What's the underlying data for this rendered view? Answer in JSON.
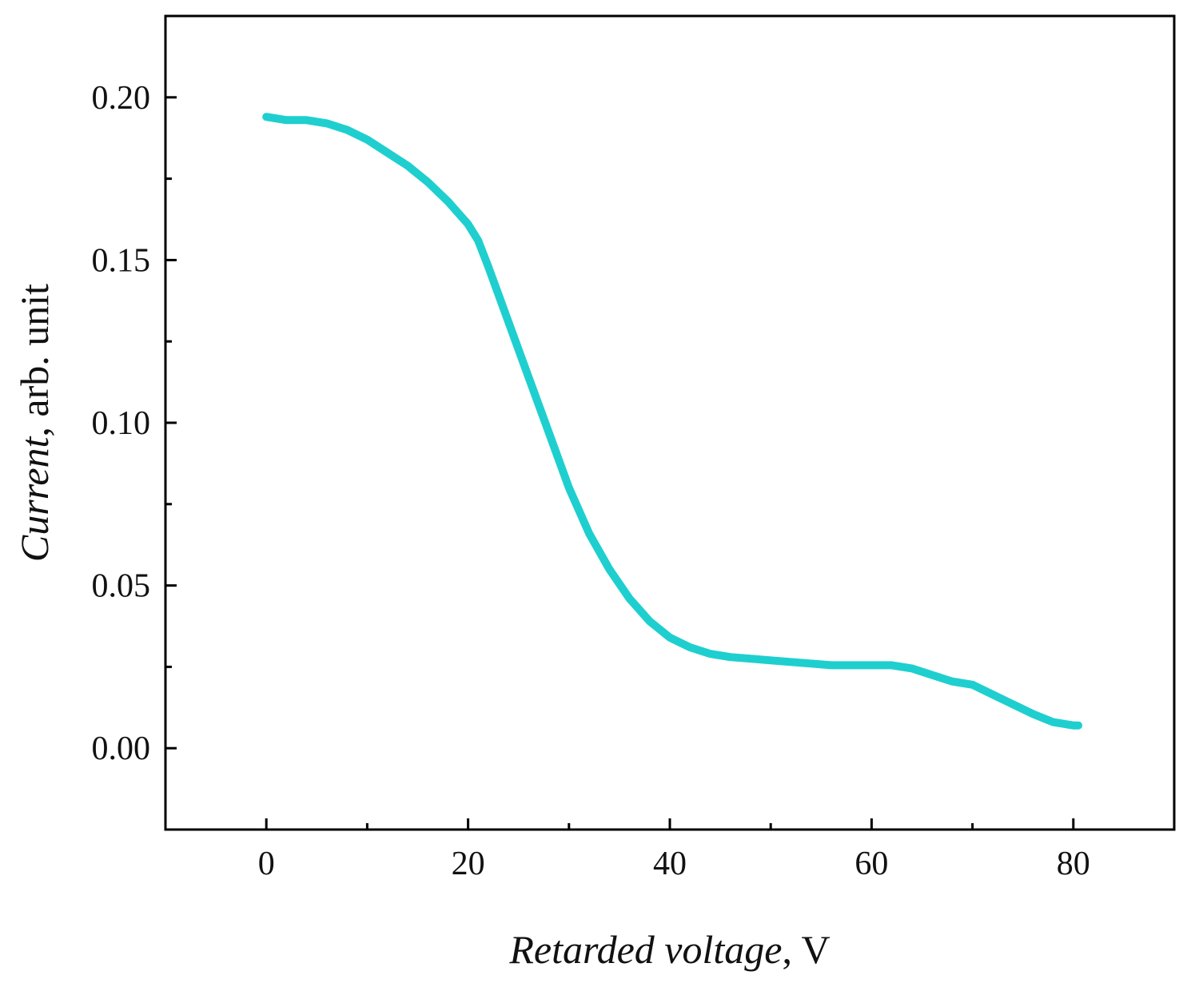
{
  "chart_data": {
    "type": "line",
    "title": "",
    "xlabel": {
      "italic": "Retarded voltage",
      "rest": ", V"
    },
    "ylabel": {
      "italic": "Current",
      "rest": ", arb. unit"
    },
    "xlim": [
      -10,
      90
    ],
    "ylim": [
      -0.025,
      0.225
    ],
    "x_ticks": [
      0,
      20,
      40,
      60,
      80
    ],
    "x_tick_labels": [
      "0",
      "20",
      "40",
      "60",
      "80"
    ],
    "y_ticks": [
      0.0,
      0.05,
      0.1,
      0.15,
      0.2
    ],
    "y_tick_labels": [
      "0.00",
      "0.05",
      "0.10",
      "0.15",
      "0.20"
    ],
    "grid": false,
    "series": [
      {
        "name": "Current",
        "color": "#1fcfcf",
        "x": [
          0,
          2,
          4,
          6,
          8,
          10,
          12,
          14,
          16,
          18,
          20,
          21,
          22,
          24,
          26,
          28,
          30,
          32,
          34,
          36,
          38,
          40,
          42,
          44,
          46,
          48,
          50,
          52,
          54,
          56,
          58,
          60,
          62,
          64,
          66,
          68,
          70,
          72,
          74,
          76,
          78,
          80,
          80.5
        ],
        "y": [
          0.194,
          0.193,
          0.193,
          0.192,
          0.19,
          0.187,
          0.183,
          0.179,
          0.174,
          0.168,
          0.161,
          0.156,
          0.148,
          0.131,
          0.114,
          0.097,
          0.08,
          0.066,
          0.055,
          0.046,
          0.039,
          0.034,
          0.031,
          0.029,
          0.028,
          0.0275,
          0.027,
          0.0265,
          0.026,
          0.0255,
          0.0255,
          0.0255,
          0.0255,
          0.0245,
          0.0225,
          0.0205,
          0.0195,
          0.0165,
          0.0135,
          0.0105,
          0.008,
          0.007,
          0.007
        ]
      }
    ]
  }
}
